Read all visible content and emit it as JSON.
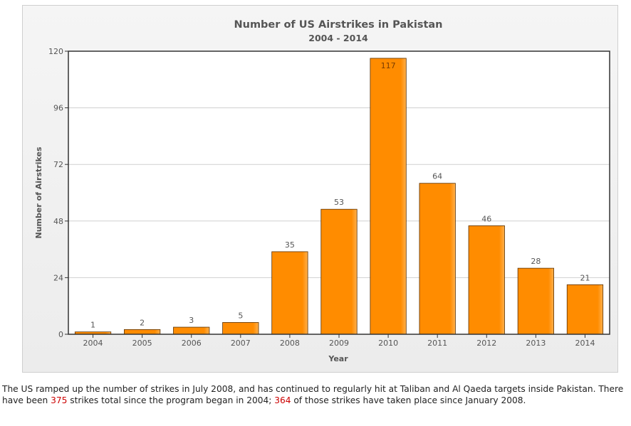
{
  "colors": {
    "bar": "#ff8c00",
    "bar_highlight": "#ffb04d",
    "bar_border": "#5a3000",
    "grid": "#d0d0d0",
    "text": "#555555",
    "highlight_text": "#cc0000"
  },
  "chart_data": {
    "type": "bar",
    "title": "Number of US Airstrikes in Pakistan",
    "subtitle": "2004 - 2014",
    "xlabel": "Year",
    "ylabel": "Number of Airstrikes",
    "categories": [
      "2004",
      "2005",
      "2006",
      "2007",
      "2008",
      "2009",
      "2010",
      "2011",
      "2012",
      "2013",
      "2014"
    ],
    "values": [
      1,
      2,
      3,
      5,
      35,
      53,
      117,
      64,
      46,
      28,
      21
    ],
    "ylim": [
      0,
      120
    ],
    "yticks": [
      0,
      24,
      48,
      72,
      96,
      120
    ],
    "grid": true,
    "legend": "none"
  },
  "caption": {
    "part1": "The US ramped up the number of strikes in July 2008, and has continued to regularly hit at Taliban and Al Qaeda targets inside Pakistan. There have been ",
    "total_strikes": "375",
    "part2": " strikes total since the program began in 2004; ",
    "since_2008": "364",
    "part3": " of those strikes have taken place since January 2008."
  }
}
